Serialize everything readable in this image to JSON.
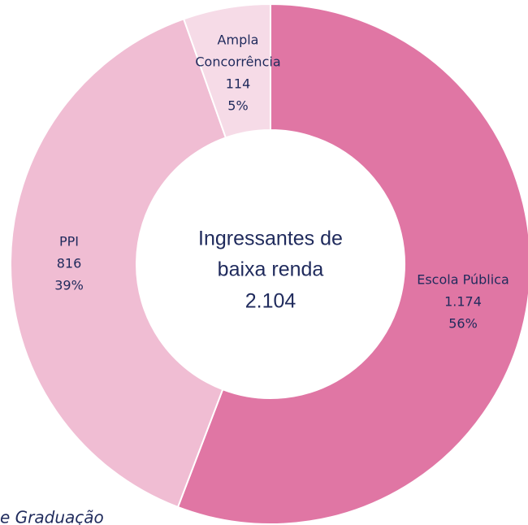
{
  "chart_data": {
    "type": "donut",
    "categories": [
      "Escola Pública",
      "PPI",
      [
        "Ampla",
        "Concorrência"
      ]
    ],
    "values": [
      1174,
      816,
      114
    ],
    "value_labels": [
      "1.174",
      "816",
      "114"
    ],
    "percent_labels": [
      "56%",
      "39%",
      "5%"
    ],
    "colors": [
      "#e076a4",
      "#f0bdd3",
      "#f6dbe7"
    ],
    "center_label": [
      "Ingressantes de",
      "baixa renda"
    ],
    "total_label": "2.104",
    "footnote": "e Graduação"
  }
}
